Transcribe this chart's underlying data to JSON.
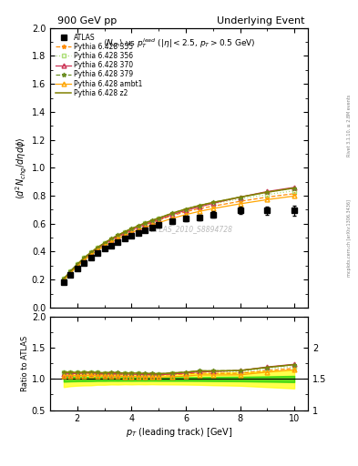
{
  "title_left": "900 GeV pp",
  "title_right": "Underlying Event",
  "watermark": "ATLAS_2010_S8894728",
  "right_label": "mcplots.cern.ch [arXiv:1306.3436]",
  "right_label2": "Rivet 3.1.10, ≥ 2.8M events",
  "main_ylabel": "$\\langle d^2 N_{chg}/d\\eta d\\phi \\rangle$",
  "ratio_ylabel": "Ratio to ATLAS",
  "xlabel": "$p_T$ (leading track) [GeV]",
  "subtitle": "$\\langle N_{ch}\\rangle$ vs $p_T^{lead}$ ($|\\eta| < 2.5$, $p_T > 0.5$ GeV)",
  "main_ylim": [
    0.0,
    2.0
  ],
  "ratio_ylim": [
    0.5,
    2.0
  ],
  "xlim": [
    1.0,
    10.5
  ],
  "atlas_x": [
    1.5,
    1.75,
    2.0,
    2.25,
    2.5,
    2.75,
    3.0,
    3.25,
    3.5,
    3.75,
    4.0,
    4.25,
    4.5,
    4.75,
    5.0,
    5.5,
    6.0,
    6.5,
    7.0,
    8.0,
    9.0,
    10.0
  ],
  "atlas_y": [
    0.185,
    0.235,
    0.28,
    0.32,
    0.355,
    0.39,
    0.42,
    0.445,
    0.47,
    0.495,
    0.515,
    0.535,
    0.555,
    0.572,
    0.59,
    0.615,
    0.635,
    0.645,
    0.665,
    0.695,
    0.695,
    0.695
  ],
  "atlas_yerr": [
    0.008,
    0.009,
    0.01,
    0.011,
    0.012,
    0.012,
    0.013,
    0.013,
    0.014,
    0.014,
    0.015,
    0.015,
    0.016,
    0.016,
    0.017,
    0.018,
    0.019,
    0.02,
    0.022,
    0.025,
    0.03,
    0.035
  ],
  "py355_x": [
    1.5,
    1.75,
    2.0,
    2.25,
    2.5,
    2.75,
    3.0,
    3.25,
    3.5,
    3.75,
    4.0,
    4.25,
    4.5,
    4.75,
    5.0,
    5.5,
    6.0,
    6.5,
    7.0,
    8.0,
    9.0,
    10.0
  ],
  "py355_y": [
    0.195,
    0.25,
    0.3,
    0.345,
    0.385,
    0.42,
    0.45,
    0.478,
    0.505,
    0.528,
    0.55,
    0.57,
    0.59,
    0.608,
    0.625,
    0.658,
    0.685,
    0.708,
    0.725,
    0.76,
    0.79,
    0.815
  ],
  "py356_x": [
    1.5,
    1.75,
    2.0,
    2.25,
    2.5,
    2.75,
    3.0,
    3.25,
    3.5,
    3.75,
    4.0,
    4.25,
    4.5,
    4.75,
    5.0,
    5.5,
    6.0,
    6.5,
    7.0,
    8.0,
    9.0,
    10.0
  ],
  "py356_y": [
    0.205,
    0.26,
    0.31,
    0.355,
    0.395,
    0.43,
    0.462,
    0.49,
    0.516,
    0.54,
    0.562,
    0.582,
    0.602,
    0.62,
    0.637,
    0.67,
    0.698,
    0.722,
    0.742,
    0.778,
    0.808,
    0.835
  ],
  "py370_x": [
    1.5,
    1.75,
    2.0,
    2.25,
    2.5,
    2.75,
    3.0,
    3.25,
    3.5,
    3.75,
    4.0,
    4.25,
    4.5,
    4.75,
    5.0,
    5.5,
    6.0,
    6.5,
    7.0,
    8.0,
    9.0,
    10.0
  ],
  "py370_y": [
    0.2,
    0.255,
    0.305,
    0.35,
    0.39,
    0.425,
    0.455,
    0.483,
    0.51,
    0.534,
    0.555,
    0.575,
    0.595,
    0.613,
    0.63,
    0.665,
    0.695,
    0.72,
    0.745,
    0.79,
    0.83,
    0.86
  ],
  "py379_x": [
    1.5,
    1.75,
    2.0,
    2.25,
    2.5,
    2.75,
    3.0,
    3.25,
    3.5,
    3.75,
    4.0,
    4.25,
    4.5,
    4.75,
    5.0,
    5.5,
    6.0,
    6.5,
    7.0,
    8.0,
    9.0,
    10.0
  ],
  "py379_y": [
    0.205,
    0.26,
    0.31,
    0.355,
    0.395,
    0.43,
    0.462,
    0.492,
    0.518,
    0.542,
    0.565,
    0.585,
    0.605,
    0.623,
    0.64,
    0.675,
    0.705,
    0.73,
    0.752,
    0.79,
    0.825,
    0.855
  ],
  "pyambt1_x": [
    1.5,
    1.75,
    2.0,
    2.25,
    2.5,
    2.75,
    3.0,
    3.25,
    3.5,
    3.75,
    4.0,
    4.25,
    4.5,
    4.75,
    5.0,
    5.5,
    6.0,
    6.5,
    7.0,
    8.0,
    9.0,
    10.0
  ],
  "pyambt1_y": [
    0.195,
    0.248,
    0.295,
    0.338,
    0.376,
    0.41,
    0.44,
    0.467,
    0.492,
    0.515,
    0.536,
    0.556,
    0.574,
    0.591,
    0.607,
    0.638,
    0.665,
    0.688,
    0.708,
    0.742,
    0.772,
    0.798
  ],
  "pyz2_x": [
    1.5,
    1.75,
    2.0,
    2.25,
    2.5,
    2.75,
    3.0,
    3.25,
    3.5,
    3.75,
    4.0,
    4.25,
    4.5,
    4.75,
    5.0,
    5.5,
    6.0,
    6.5,
    7.0,
    8.0,
    9.0,
    10.0
  ],
  "pyz2_y": [
    0.205,
    0.26,
    0.31,
    0.355,
    0.395,
    0.43,
    0.462,
    0.492,
    0.518,
    0.542,
    0.565,
    0.585,
    0.605,
    0.623,
    0.64,
    0.675,
    0.705,
    0.73,
    0.752,
    0.79,
    0.825,
    0.855
  ],
  "color_355": "#FF8C00",
  "color_356": "#ADDE77",
  "color_370": "#CC3355",
  "color_379": "#6B8E23",
  "color_ambt1": "#FFA500",
  "color_z2": "#808000",
  "color_atlas": "#000000",
  "band_yellow": "#FFFF00",
  "band_green": "#00CC00"
}
